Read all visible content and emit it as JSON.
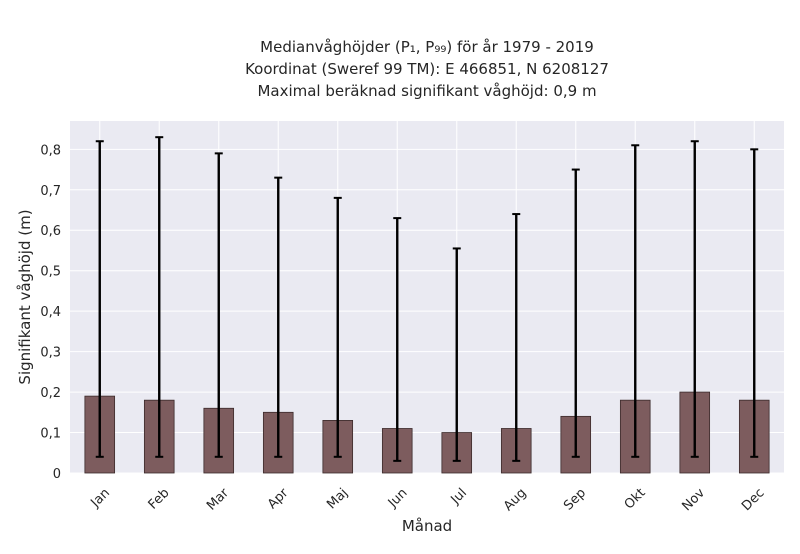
{
  "chart_data": {
    "type": "bar",
    "title_lines": [
      "Medianvåghöjder (P₁, P₉₉) för år 1979 - 2019",
      "Koordinat (Sweref 99 TM): E 466851, N 6208127",
      "Maximal beräknad signifikant våghöjd: 0,9 m"
    ],
    "xlabel": "Månad",
    "ylabel": "Signifikant våghöjd (m)",
    "categories": [
      "Jan",
      "Feb",
      "Mar",
      "Apr",
      "Maj",
      "Jun",
      "Jul",
      "Aug",
      "Sep",
      "Okt",
      "Nov",
      "Dec"
    ],
    "series": [
      {
        "values": [
          0.19,
          0.18,
          0.16,
          0.15,
          0.13,
          0.11,
          0.1,
          0.11,
          0.14,
          0.18,
          0.2,
          0.18
        ],
        "p1": [
          0.04,
          0.04,
          0.04,
          0.04,
          0.04,
          0.03,
          0.03,
          0.03,
          0.04,
          0.04,
          0.04,
          0.04
        ],
        "p99": [
          0.82,
          0.83,
          0.79,
          0.73,
          0.68,
          0.63,
          0.555,
          0.64,
          0.75,
          0.81,
          0.82,
          0.8
        ]
      }
    ],
    "yticks": [
      0,
      0.1,
      0.2,
      0.3,
      0.4,
      0.5,
      0.6,
      0.7,
      0.8
    ],
    "ytick_labels": [
      "0",
      "0,1",
      "0,2",
      "0,3",
      "0,4",
      "0,5",
      "0,6",
      "0,7",
      "0,8"
    ],
    "ylim": [
      0,
      0.87
    ],
    "grid": true,
    "colors": {
      "bar": "#7d5c5e",
      "bar_edge": "#3b2a2b",
      "error_bar": "#000000",
      "plot_background": "#eaeaf2",
      "grid": "#ffffff"
    }
  }
}
